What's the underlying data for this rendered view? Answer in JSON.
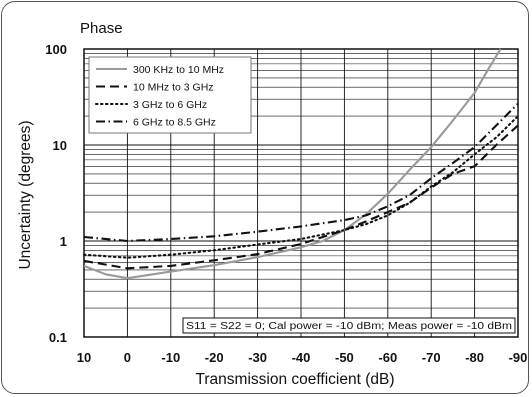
{
  "chart_data": {
    "type": "line",
    "title": "Phase",
    "xlabel": "Transmission coefficient (dB)",
    "ylabel": "Uncertainty (degrees)",
    "x_ticks": [
      10,
      0,
      -10,
      -20,
      -30,
      -40,
      -50,
      -60,
      -70,
      -80,
      -90
    ],
    "y_ticks": [
      0.1,
      1,
      10,
      100
    ],
    "xlim": [
      10,
      -90
    ],
    "ylim": [
      0.1,
      100
    ],
    "yscale": "log",
    "grid": true,
    "legend_position": "top-left",
    "annotation": "S11 = S22 = 0; Cal power = -10 dBm; Meas power = -10 dBm",
    "series": [
      {
        "name": "300 KHz to 10 MHz",
        "color": "#9a9a9a",
        "dash": "solid",
        "x": [
          10,
          5,
          0,
          -10,
          -20,
          -30,
          -40,
          -45,
          -50,
          -55,
          -60,
          -65,
          -70,
          -75,
          -80,
          -83,
          -86
        ],
        "y": [
          0.55,
          0.45,
          0.41,
          0.48,
          0.56,
          0.68,
          0.86,
          1.0,
          1.3,
          1.9,
          3.1,
          5.5,
          9.5,
          18,
          35,
          60,
          100
        ]
      },
      {
        "name": "10 MHz to 3 GHz",
        "color": "#111111",
        "dash": "dashed",
        "x": [
          10,
          0,
          -10,
          -20,
          -30,
          -40,
          -50,
          -55,
          -60,
          -65,
          -70,
          -75,
          -80,
          -85,
          -90
        ],
        "y": [
          0.62,
          0.52,
          0.55,
          0.63,
          0.73,
          0.93,
          1.3,
          1.6,
          2.0,
          2.5,
          3.6,
          5.0,
          6.0,
          10,
          16
        ]
      },
      {
        "name": "3 GHz to 6 GHz",
        "color": "#111111",
        "dash": "dotted",
        "x": [
          10,
          0,
          -10,
          -20,
          -30,
          -40,
          -50,
          -55,
          -60,
          -65,
          -70,
          -75,
          -80,
          -85,
          -90
        ],
        "y": [
          0.72,
          0.67,
          0.72,
          0.8,
          0.92,
          1.05,
          1.3,
          1.5,
          1.85,
          2.5,
          3.7,
          5.2,
          8.0,
          12,
          20
        ]
      },
      {
        "name": "6 GHz to 8.5 GHz",
        "color": "#111111",
        "dash": "dashdot",
        "x": [
          10,
          0,
          -10,
          -20,
          -30,
          -40,
          -50,
          -55,
          -60,
          -65,
          -70,
          -75,
          -80,
          -85,
          -90
        ],
        "y": [
          1.1,
          1.0,
          1.05,
          1.12,
          1.25,
          1.42,
          1.65,
          1.85,
          2.3,
          3.0,
          4.5,
          6.5,
          9.5,
          16,
          27
        ]
      }
    ]
  }
}
